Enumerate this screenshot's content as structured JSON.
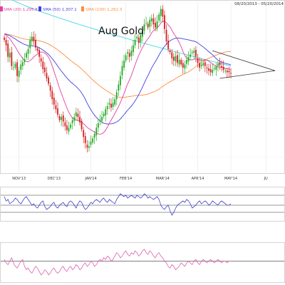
{
  "header": {
    "date_range": "08/20/2013 - 05/20/2014",
    "legend": [
      {
        "label": "SMA (20) 1,295.8",
        "color": "#e040a0"
      },
      {
        "label": "SMA (50) 1,307.1",
        "color": "#4040e0"
      },
      {
        "label": "SMA (100) 1,262.3",
        "color": "#ff8c40"
      }
    ]
  },
  "chart_data": [
    {
      "type": "candlestick",
      "title": "Aug Gold",
      "x_tick_labels": [
        "NOV'13",
        "DEC'13",
        "JAN'14",
        "FEB'14",
        "MAR'14",
        "APR'14",
        "MAY'14",
        "JU"
      ],
      "x_ticks_day_index": [
        8,
        27,
        47,
        66,
        86,
        105,
        123,
        142
      ],
      "ylim": [
        1180,
        1400
      ],
      "ma_colors": {
        "sma20": "#e040a0",
        "sma50": "#4040e0",
        "sma100": "#ff8c40",
        "sma200": "#40d8e0"
      },
      "closes": [
        1352,
        1345,
        1330,
        1335,
        1318,
        1316,
        1321,
        1305,
        1312,
        1320,
        1323,
        1327,
        1335,
        1340,
        1352,
        1356,
        1350,
        1342,
        1338,
        1330,
        1324,
        1314,
        1310,
        1302,
        1295,
        1286,
        1275,
        1268,
        1262,
        1255,
        1248,
        1252,
        1246,
        1240,
        1235,
        1238,
        1242,
        1248,
        1252,
        1258,
        1252,
        1245,
        1236,
        1226,
        1218,
        1212,
        1214,
        1220,
        1224,
        1230,
        1238,
        1244,
        1248,
        1252,
        1256,
        1262,
        1266,
        1270,
        1264,
        1270,
        1275,
        1284,
        1294,
        1305,
        1318,
        1325,
        1332,
        1336,
        1330,
        1338,
        1345,
        1352,
        1356,
        1348,
        1358,
        1364,
        1372,
        1374,
        1368,
        1378,
        1380,
        1372,
        1368,
        1376,
        1385,
        1392,
        1382,
        1366,
        1350,
        1340,
        1336,
        1328,
        1325,
        1331,
        1322,
        1326,
        1320,
        1316,
        1320,
        1326,
        1330,
        1333,
        1336,
        1338,
        1330,
        1322,
        1316,
        1320,
        1322,
        1318,
        1315,
        1312,
        1310,
        1313,
        1315,
        1318,
        1321,
        1319,
        1316,
        1313,
        1312,
        1310,
        1310,
        1308
      ],
      "triangle": {
        "upper": [
          [
            113,
            1338
          ],
          [
            147,
            1312
          ]
        ],
        "lower": [
          [
            117,
            1302
          ],
          [
            147,
            1312
          ]
        ]
      },
      "sma200_start": 1410,
      "sma200_end": 1318
    },
    {
      "type": "line",
      "name": "oscillator-1",
      "color": "#4040d0",
      "ylim": [
        -1,
        1
      ],
      "hlines": [
        0.7,
        0.0,
        -0.5
      ],
      "values": [
        0.6,
        0.3,
        0.4,
        0.1,
        0.2,
        0.3,
        0.5,
        0.4,
        0.2,
        0.1,
        0.3,
        0.5,
        0.6,
        0.4,
        0.2,
        0.0,
        0.1,
        -0.1,
        -0.2,
        0.0,
        0.2,
        0.3,
        -0.1,
        -0.3,
        -0.2,
        -0.1,
        0.1,
        0.2,
        -0.1,
        -0.2,
        0.0,
        0.1,
        0.2,
        0.0,
        -0.1,
        0.2,
        0.3,
        0.2,
        0.0,
        -0.2,
        0.1,
        0.3,
        0.2,
        -0.1,
        -0.3,
        -0.2,
        0.0,
        0.2,
        0.1,
        0.3,
        0.4,
        0.3,
        0.2,
        0.4,
        0.5,
        0.3,
        0.2,
        0.4,
        0.3,
        0.2,
        0.1,
        0.4,
        0.6,
        0.8,
        0.7,
        0.6,
        0.7,
        0.5,
        0.6,
        0.7,
        0.6,
        0.5,
        0.7,
        0.6,
        0.5,
        0.6,
        0.8,
        0.7,
        0.5,
        0.6,
        0.5,
        0.4,
        0.5,
        0.6,
        0.4,
        0.0,
        -0.2,
        -0.3,
        -0.1,
        0.0,
        -0.4,
        -0.7,
        -0.5,
        -0.2,
        0.0,
        0.1,
        0.2,
        0.3,
        0.2,
        0.4,
        0.3,
        0.1,
        -0.2,
        -0.1,
        0.0,
        0.2,
        0.3,
        0.1,
        0.2,
        0.3,
        0.2,
        0.0,
        0.1,
        0.3,
        0.2,
        0.1,
        0.0,
        0.2,
        0.3,
        0.2,
        0.1,
        0.0,
        0.0,
        0.1
      ]
    },
    {
      "type": "line",
      "name": "oscillator-2",
      "color": "#e060b0",
      "ylim": [
        -1,
        1
      ],
      "hlines": [
        0.1
      ],
      "values": [
        0.2,
        0.0,
        -0.1,
        0.1,
        0.3,
        0.0,
        -0.2,
        -0.3,
        -0.1,
        0.1,
        0.2,
        -0.2,
        -0.4,
        -0.3,
        -0.5,
        -0.6,
        -0.4,
        -0.2,
        -0.3,
        -0.5,
        -0.7,
        -0.6,
        -0.4,
        -0.5,
        -0.7,
        -0.6,
        -0.4,
        -0.3,
        -0.5,
        -0.6,
        -0.5,
        -0.3,
        -0.2,
        -0.4,
        -0.5,
        -0.3,
        -0.2,
        -0.4,
        -0.3,
        -0.1,
        -0.2,
        -0.4,
        -0.3,
        -0.1,
        0.0,
        -0.2,
        -0.1,
        0.1,
        0.0,
        -0.2,
        -0.1,
        0.1,
        0.2,
        0.1,
        0.3,
        0.2,
        0.4,
        0.3,
        0.1,
        0.2,
        0.4,
        0.6,
        0.5,
        0.3,
        0.4,
        0.6,
        0.7,
        0.5,
        0.4,
        0.6,
        0.5,
        0.7,
        0.6,
        0.4,
        0.5,
        0.7,
        0.8,
        0.6,
        0.5,
        0.7,
        0.6,
        0.4,
        0.3,
        0.5,
        0.6,
        0.4,
        0.3,
        0.1,
        0.0,
        -0.2,
        -0.3,
        -0.1,
        -0.2,
        -0.4,
        -0.3,
        -0.2,
        0.0,
        -0.1,
        -0.2,
        0.0,
        0.1,
        0.0,
        -0.1,
        0.1,
        0.2,
        0.0,
        -0.1,
        0.1,
        0.2,
        0.1,
        0.0,
        0.1,
        0.2,
        0.1,
        0.0,
        0.1,
        0.2,
        0.1,
        0.0,
        0.1,
        0.1,
        0.0,
        0.1,
        0.1
      ]
    }
  ]
}
